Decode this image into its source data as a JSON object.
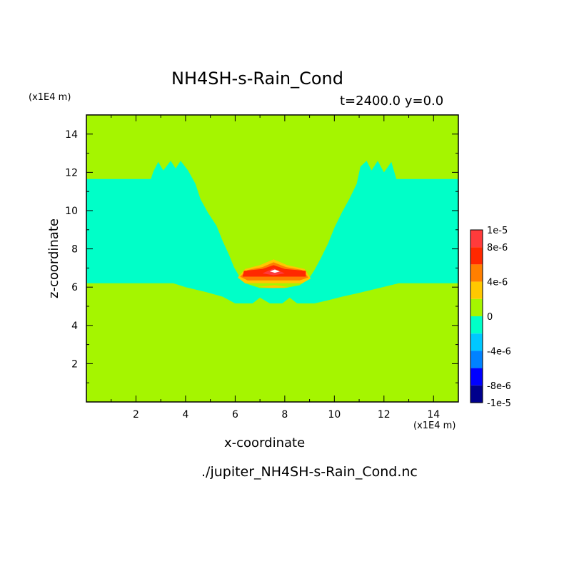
{
  "chart_data": {
    "type": "heatmap",
    "title": "NH4SH-s-Rain_Cond",
    "subtitle": "t=2400.0 y=0.0",
    "xlabel": "x-coordinate",
    "ylabel": "z-coordinate",
    "x_unit": "(x1E4 m)",
    "y_unit": "(x1E4 m)",
    "xlim": [
      0,
      15
    ],
    "ylim": [
      0,
      15
    ],
    "x_ticks": [
      "2",
      "4",
      "6",
      "8",
      "10",
      "12",
      "14"
    ],
    "x_tick_values": [
      2,
      4,
      6,
      8,
      10,
      12,
      14
    ],
    "y_ticks": [
      "2",
      "4",
      "6",
      "8",
      "10",
      "12",
      "14"
    ],
    "y_tick_values": [
      2,
      4,
      6,
      8,
      10,
      12,
      14
    ],
    "colorbar": {
      "range": [
        -1e-05,
        1e-05
      ],
      "tick_labels": [
        "1e-5",
        "8e-6",
        "4e-6",
        "0",
        "-4e-6",
        "-8e-6",
        "-1e-5"
      ],
      "tick_values": [
        1e-05,
        8e-06,
        4e-06,
        0,
        -4e-06,
        -8e-06,
        -1e-05
      ],
      "levels": [
        {
          "from": 8e-06,
          "to": 1e-05,
          "color": "#ff3b3b"
        },
        {
          "from": 6e-06,
          "to": 8e-06,
          "color": "#ff2800"
        },
        {
          "from": 4e-06,
          "to": 6e-06,
          "color": "#ff7f00"
        },
        {
          "from": 2e-06,
          "to": 4e-06,
          "color": "#ffc800"
        },
        {
          "from": 0,
          "to": 2e-06,
          "color": "#a5f500"
        },
        {
          "from": -2e-06,
          "to": 0,
          "color": "#00ffc8"
        },
        {
          "from": -4e-06,
          "to": -2e-06,
          "color": "#00c8ff"
        },
        {
          "from": -6e-06,
          "to": -4e-06,
          "color": "#0082ff"
        },
        {
          "from": -8e-06,
          "to": -6e-06,
          "color": "#0000ff"
        },
        {
          "from": -1e-05,
          "to": -8e-06,
          "color": "#00008c"
        }
      ]
    },
    "background_color": "#a5f500",
    "negative_color": "#00ffc8",
    "regions": [
      {
        "value": -1e-06,
        "color": "#00ffc8",
        "polygon": [
          [
            0,
            11.65
          ],
          [
            2.6,
            11.65
          ],
          [
            2.7,
            12.05
          ],
          [
            2.9,
            12.55
          ],
          [
            3.1,
            12.1
          ],
          [
            3.4,
            12.6
          ],
          [
            3.6,
            12.2
          ],
          [
            3.8,
            12.6
          ],
          [
            4.1,
            12.1
          ],
          [
            4.4,
            11.4
          ],
          [
            4.6,
            10.6
          ],
          [
            4.9,
            9.9
          ],
          [
            5.25,
            9.2
          ],
          [
            5.5,
            8.4
          ],
          [
            5.75,
            7.7
          ],
          [
            5.95,
            7.05
          ],
          [
            6.15,
            6.6
          ],
          [
            6.4,
            6.2
          ],
          [
            7.0,
            5.95
          ],
          [
            8.0,
            5.95
          ],
          [
            8.6,
            6.1
          ],
          [
            8.95,
            6.4
          ],
          [
            9.2,
            6.9
          ],
          [
            9.45,
            7.5
          ],
          [
            9.75,
            8.3
          ],
          [
            10.0,
            9.1
          ],
          [
            10.3,
            9.9
          ],
          [
            10.6,
            10.6
          ],
          [
            10.9,
            11.4
          ],
          [
            11.05,
            12.3
          ],
          [
            11.3,
            12.6
          ],
          [
            11.5,
            12.1
          ],
          [
            11.75,
            12.6
          ],
          [
            12.0,
            12.0
          ],
          [
            12.3,
            12.55
          ],
          [
            12.5,
            11.65
          ],
          [
            15,
            11.65
          ],
          [
            15,
            6.2
          ],
          [
            12.6,
            6.2
          ],
          [
            11.8,
            5.95
          ],
          [
            11.0,
            5.7
          ],
          [
            10.3,
            5.5
          ],
          [
            9.7,
            5.3
          ],
          [
            9.2,
            5.15
          ],
          [
            8.5,
            5.15
          ],
          [
            8.2,
            5.45
          ],
          [
            7.9,
            5.15
          ],
          [
            7.4,
            5.15
          ],
          [
            7.0,
            5.45
          ],
          [
            6.7,
            5.15
          ],
          [
            6.0,
            5.15
          ],
          [
            5.5,
            5.5
          ],
          [
            4.8,
            5.75
          ],
          [
            4.0,
            6.0
          ],
          [
            3.5,
            6.2
          ],
          [
            0,
            6.2
          ]
        ]
      },
      {
        "value": 3e-06,
        "color": "#ffc800",
        "polygon": [
          [
            6.1,
            6.5
          ],
          [
            6.4,
            6.95
          ],
          [
            7.0,
            7.15
          ],
          [
            7.55,
            7.45
          ],
          [
            8.1,
            7.15
          ],
          [
            8.8,
            6.95
          ],
          [
            9.05,
            6.45
          ],
          [
            8.7,
            6.2
          ],
          [
            6.4,
            6.2
          ]
        ]
      },
      {
        "value": 3e-06,
        "color": "#ffc800",
        "polygon": [
          [
            6.9,
            6.02
          ],
          [
            7.5,
            5.95
          ],
          [
            8.2,
            6.0
          ],
          [
            7.6,
            6.1
          ]
        ]
      },
      {
        "value": 5e-06,
        "color": "#ff7f00",
        "polygon": [
          [
            6.2,
            6.55
          ],
          [
            6.5,
            6.9
          ],
          [
            7.1,
            7.05
          ],
          [
            7.55,
            7.3
          ],
          [
            8.05,
            7.05
          ],
          [
            8.7,
            6.9
          ],
          [
            8.95,
            6.5
          ],
          [
            8.6,
            6.35
          ],
          [
            6.5,
            6.35
          ]
        ]
      },
      {
        "value": 7e-06,
        "color": "#ff2800",
        "polygon": [
          [
            6.3,
            6.55
          ],
          [
            6.35,
            6.85
          ],
          [
            7.1,
            6.95
          ],
          [
            7.55,
            7.15
          ],
          [
            8.0,
            6.95
          ],
          [
            8.85,
            6.85
          ],
          [
            8.85,
            6.55
          ],
          [
            6.3,
            6.55
          ]
        ]
      },
      {
        "value": 9e-06,
        "color": "#ff3b3b",
        "polygon": [
          [
            7.1,
            6.72
          ],
          [
            7.55,
            6.98
          ],
          [
            8.0,
            6.72
          ],
          [
            7.55,
            6.62
          ]
        ]
      },
      {
        "value": 1e-05,
        "color": "#ffffff",
        "polygon": [
          [
            7.4,
            6.82
          ],
          [
            7.6,
            6.92
          ],
          [
            7.8,
            6.82
          ],
          [
            7.6,
            6.75
          ]
        ]
      }
    ]
  },
  "labels": {
    "title": "NH4SH-s-Rain_Cond",
    "subtitle": "t=2400.0 y=0.0",
    "y_unit": "(x1E4 m)",
    "x_unit": "(x1E4 m)",
    "xlabel": "x-coordinate",
    "ylabel": "z-coordinate",
    "source": "./jupiter_NH4SH-s-Rain_Cond.nc"
  }
}
